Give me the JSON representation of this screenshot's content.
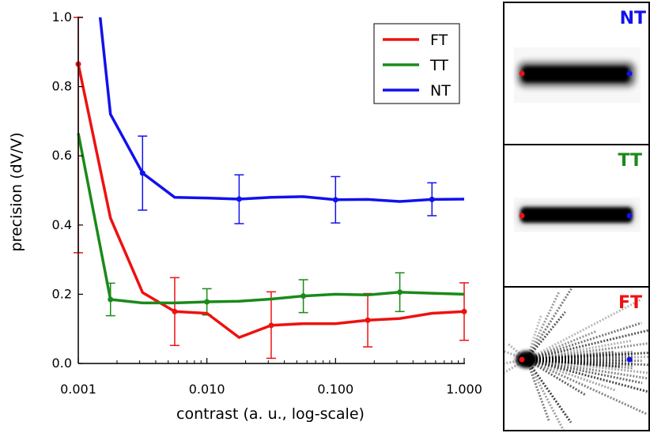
{
  "chart_data": {
    "type": "line",
    "xscale": "log",
    "xlabel": "contrast (a. u., log-scale)",
    "ylabel": "precision (dV/V)",
    "xlim": [
      0.001,
      1.0
    ],
    "ylim": [
      0.0,
      1.0
    ],
    "xticks": [
      0.001,
      0.01,
      0.1,
      1.0
    ],
    "xtick_labels": [
      "0.001",
      "0.010",
      "0.100",
      "1.000"
    ],
    "yticks": [
      0.0,
      0.2,
      0.4,
      0.6,
      0.8,
      1.0
    ],
    "ytick_labels": [
      "0.0",
      "0.2",
      "0.4",
      "0.6",
      "0.8",
      "1.0"
    ],
    "reference_line": {
      "y": 0.0,
      "style": "dotted"
    },
    "legend": {
      "location": "top-right",
      "entries": [
        "FT",
        "TT",
        "NT"
      ]
    },
    "series": [
      {
        "name": "FT",
        "color": "#ee1111",
        "x": [
          0.001,
          0.00178,
          0.00316,
          0.00562,
          0.01,
          0.0178,
          0.0316,
          0.0562,
          0.1,
          0.178,
          0.316,
          0.562,
          1.0
        ],
        "y": [
          0.865,
          0.42,
          0.205,
          0.15,
          0.145,
          0.075,
          0.11,
          0.115,
          0.115,
          0.125,
          0.13,
          0.145,
          0.15
        ],
        "errorbars": [
          {
            "x": 0.001,
            "y": 0.865,
            "lo": 0.32,
            "hi": 1.0
          },
          {
            "x": 0.00562,
            "y": 0.15,
            "lo": 0.052,
            "hi": 0.248
          },
          {
            "x": 0.0316,
            "y": 0.11,
            "lo": 0.015,
            "hi": 0.207
          },
          {
            "x": 0.178,
            "y": 0.125,
            "lo": 0.048,
            "hi": 0.202
          },
          {
            "x": 1.0,
            "y": 0.15,
            "lo": 0.067,
            "hi": 0.233
          }
        ]
      },
      {
        "name": "TT",
        "color": "#1a8a1a",
        "x": [
          0.001,
          0.00178,
          0.00316,
          0.00562,
          0.01,
          0.0178,
          0.0316,
          0.0562,
          0.1,
          0.178,
          0.316,
          0.562,
          1.0
        ],
        "y": [
          0.665,
          0.185,
          0.175,
          0.175,
          0.178,
          0.18,
          0.186,
          0.195,
          0.2,
          0.198,
          0.206,
          0.203,
          0.2
        ],
        "errorbars": [
          {
            "x": 0.00178,
            "y": 0.185,
            "lo": 0.138,
            "hi": 0.232
          },
          {
            "x": 0.01,
            "y": 0.178,
            "lo": 0.14,
            "hi": 0.216
          },
          {
            "x": 0.0562,
            "y": 0.195,
            "lo": 0.147,
            "hi": 0.242
          },
          {
            "x": 0.316,
            "y": 0.206,
            "lo": 0.15,
            "hi": 0.262
          }
        ]
      },
      {
        "name": "NT",
        "color": "#1111ee",
        "x": [
          0.00148,
          0.00178,
          0.00316,
          0.00562,
          0.01,
          0.0178,
          0.0316,
          0.0562,
          0.1,
          0.178,
          0.316,
          0.562,
          1.0
        ],
        "y": [
          1.0,
          0.72,
          0.55,
          0.48,
          0.478,
          0.475,
          0.48,
          0.482,
          0.473,
          0.474,
          0.468,
          0.474,
          0.475
        ],
        "errorbars": [
          {
            "x": 0.00316,
            "y": 0.55,
            "lo": 0.443,
            "hi": 0.657
          },
          {
            "x": 0.0178,
            "y": 0.475,
            "lo": 0.404,
            "hi": 0.545
          },
          {
            "x": 0.1,
            "y": 0.473,
            "lo": 0.406,
            "hi": 0.54
          },
          {
            "x": 0.562,
            "y": 0.474,
            "lo": 0.427,
            "hi": 0.522
          }
        ]
      }
    ]
  },
  "panels": [
    {
      "label": "NT",
      "label_color": "#1111ee",
      "kind": "band",
      "start_color": "#ee1111",
      "end_color": "#1111ee"
    },
    {
      "label": "TT",
      "label_color": "#1a8a1a",
      "kind": "thin-band",
      "start_color": "#ee1111",
      "end_color": "#1111ee"
    },
    {
      "label": "FT",
      "label_color": "#ee1111",
      "kind": "fan",
      "start_color": "#ee1111",
      "end_color": "#1111ee"
    }
  ]
}
